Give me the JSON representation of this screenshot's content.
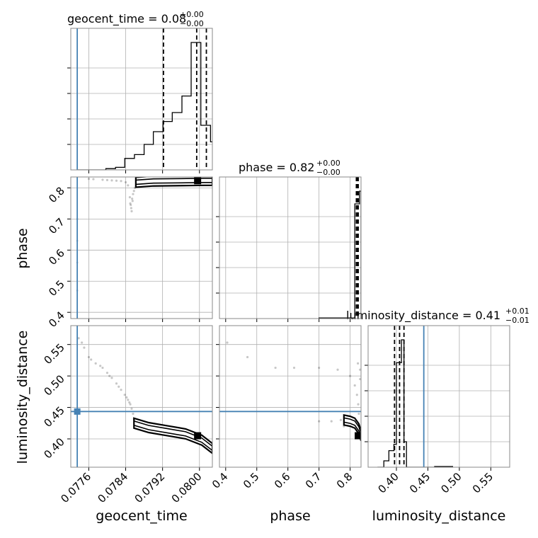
{
  "chart_data": {
    "type": "corner",
    "truth_color": "#4682b4",
    "hist_color": "#000000",
    "parameters": [
      {
        "name": "geocent_time",
        "xlabel": "geocent_time",
        "title": {
          "main": "geocent_time = 0.08",
          "plus": "+0.00",
          "minus": "−0.00"
        },
        "range": [
          0.07721,
          0.08028
        ],
        "ticks": [
          0.0776,
          0.0784,
          0.0792,
          0.08
        ],
        "tick_labels": [
          "0.0776",
          "0.0784",
          "0.0792",
          "0.0800"
        ],
        "truth": 0.07735,
        "quantiles": [
          0.07922,
          0.07994,
          0.08015
        ],
        "hist_edges": [
          0.07735,
          0.07756,
          0.07776,
          0.07797,
          0.07818,
          0.07838,
          0.07859,
          0.0788,
          0.079,
          0.07921,
          0.07941,
          0.07962,
          0.07982,
          0.08003,
          0.08024
        ],
        "hist_counts": [
          0.0,
          0.0,
          0.0,
          0.01,
          0.02,
          0.09,
          0.12,
          0.2,
          0.3,
          0.38,
          0.45,
          0.58,
          1.0,
          0.35
        ],
        "hist_tail": 0.22
      },
      {
        "name": "phase",
        "xlabel": "phase",
        "title": {
          "main": "phase = 0.82",
          "plus": "+0.00",
          "minus": "−0.00"
        },
        "range": [
          0.38,
          0.835
        ],
        "ticks": [
          0.4,
          0.5,
          0.6,
          0.7,
          0.8
        ],
        "tick_labels": [
          "0.4",
          "0.5",
          "0.6",
          "0.7",
          "0.8"
        ],
        "ylabel": "phase",
        "truth": null,
        "quantiles": [
          0.82,
          0.823,
          0.826
        ],
        "hist_edges": [
          0.7,
          0.815,
          0.83,
          0.835
        ],
        "hist_counts": [
          0.005,
          0.9,
          1.0
        ]
      },
      {
        "name": "luminosity_distance",
        "xlabel": "luminosity_distance",
        "ylabel": "luminosity_distance",
        "title": {
          "main": "luminosity_distance = 0.41",
          "plus": "+0.01",
          "minus": "−0.01"
        },
        "range": [
          0.355,
          0.58
        ],
        "ticks": [
          0.4,
          0.45,
          0.5,
          0.55
        ],
        "tick_labels": [
          "0.40",
          "0.45",
          "0.50",
          "0.55"
        ],
        "truth": 0.4435,
        "quantiles": [
          0.397,
          0.405,
          0.412
        ],
        "hist_edges": [
          0.37,
          0.38,
          0.388,
          0.396,
          0.4,
          0.404,
          0.408,
          0.412,
          0.416,
          0.45,
          0.46,
          0.49
        ],
        "hist_counts": [
          0.0,
          0.05,
          0.13,
          0.18,
          0.82,
          0.82,
          1.0,
          0.2,
          0.0,
          0.0,
          0.0
        ],
        "hist_low": 0.01
      }
    ],
    "phase_axis_ticks_y": [
      0.4,
      0.5,
      0.6,
      0.7,
      0.8
    ],
    "phase_axis_tick_labels_y": [
      "0.4",
      "0.5",
      "0.6",
      "0.7",
      "0.8"
    ],
    "lumdist_axis_ticks_y": [
      0.4,
      0.45,
      0.5,
      0.55
    ],
    "lumdist_axis_tick_labels_y": [
      "0.40",
      "0.45",
      "0.50",
      "0.55"
    ],
    "grid": true,
    "scatter_time_phase": [
      [
        0.0785,
        0.75
      ],
      [
        0.07851,
        0.745
      ],
      [
        0.07852,
        0.735
      ],
      [
        0.07853,
        0.725
      ],
      [
        0.07854,
        0.765
      ],
      [
        0.07856,
        0.78
      ],
      [
        0.07858,
        0.79
      ],
      [
        0.0786,
        0.8
      ],
      [
        0.07863,
        0.805
      ],
      [
        0.07868,
        0.812
      ],
      [
        0.07875,
        0.815
      ],
      [
        0.07885,
        0.82
      ],
      [
        0.07895,
        0.822
      ],
      [
        0.07905,
        0.823
      ],
      [
        0.0783,
        0.822
      ],
      [
        0.0781,
        0.824
      ],
      [
        0.0779,
        0.826
      ],
      [
        0.0777,
        0.828
      ],
      [
        0.0776,
        0.829
      ],
      [
        0.078,
        0.825
      ],
      [
        0.0782,
        0.823
      ],
      [
        0.07849,
        0.77
      ],
      [
        0.07855,
        0.758
      ],
      [
        0.07845,
        0.808
      ],
      [
        0.0784,
        0.818
      ]
    ],
    "scatter_phase_truthcol": [
      [
        0.07735,
        0.63
      ],
      [
        0.07735,
        0.56
      ],
      [
        0.07735,
        0.47
      ],
      [
        0.07735,
        0.7
      ]
    ],
    "scatter_time_lum": [
      [
        0.07745,
        0.553
      ],
      [
        0.0775,
        0.545
      ],
      [
        0.0776,
        0.53
      ],
      [
        0.07775,
        0.52
      ],
      [
        0.0779,
        0.513
      ],
      [
        0.078,
        0.505
      ],
      [
        0.0781,
        0.497
      ],
      [
        0.0782,
        0.488
      ],
      [
        0.0783,
        0.478
      ],
      [
        0.07838,
        0.47
      ],
      [
        0.07845,
        0.462
      ],
      [
        0.0785,
        0.455
      ],
      [
        0.07853,
        0.448
      ],
      [
        0.07856,
        0.44
      ],
      [
        0.07858,
        0.432
      ],
      [
        0.07842,
        0.466
      ],
      [
        0.07825,
        0.483
      ],
      [
        0.07805,
        0.5
      ],
      [
        0.07785,
        0.516
      ],
      [
        0.07765,
        0.526
      ],
      [
        0.07738,
        0.56
      ],
      [
        0.07848,
        0.458
      ]
    ],
    "scatter_phase_lum": [
      [
        0.405,
        0.553
      ],
      [
        0.47,
        0.53
      ],
      [
        0.56,
        0.513
      ],
      [
        0.62,
        0.513
      ],
      [
        0.7,
        0.513
      ],
      [
        0.76,
        0.51
      ],
      [
        0.8,
        0.5
      ],
      [
        0.815,
        0.485
      ],
      [
        0.822,
        0.47
      ],
      [
        0.826,
        0.455
      ],
      [
        0.828,
        0.44
      ],
      [
        0.7,
        0.428
      ],
      [
        0.74,
        0.428
      ],
      [
        0.77,
        0.43
      ],
      [
        0.79,
        0.432
      ],
      [
        0.81,
        0.425
      ],
      [
        0.78,
        0.42
      ],
      [
        0.825,
        0.52
      ],
      [
        0.832,
        0.51
      ],
      [
        0.832,
        0.495
      ]
    ],
    "band_time_phase": [
      [
        0.07862,
        0.818
      ],
      [
        0.079,
        0.822
      ],
      [
        0.0796,
        0.823
      ],
      [
        0.0801,
        0.824
      ],
      [
        0.08028,
        0.824
      ]
    ],
    "band_time_lum": [
      [
        0.07858,
        0.425
      ],
      [
        0.0789,
        0.418
      ],
      [
        0.0793,
        0.413
      ],
      [
        0.0797,
        0.408
      ],
      [
        0.08005,
        0.398
      ],
      [
        0.08028,
        0.385
      ]
    ],
    "band_phase_lum": [
      [
        0.78,
        0.43
      ],
      [
        0.8,
        0.428
      ],
      [
        0.815,
        0.425
      ],
      [
        0.828,
        0.416
      ],
      [
        0.835,
        0.405
      ]
    ],
    "peak_time_phase": [
      0.07996,
      0.823
    ],
    "peak_time_lum": [
      0.07996,
      0.405
    ],
    "peak_phase_lum": [
      0.826,
      0.405
    ]
  }
}
